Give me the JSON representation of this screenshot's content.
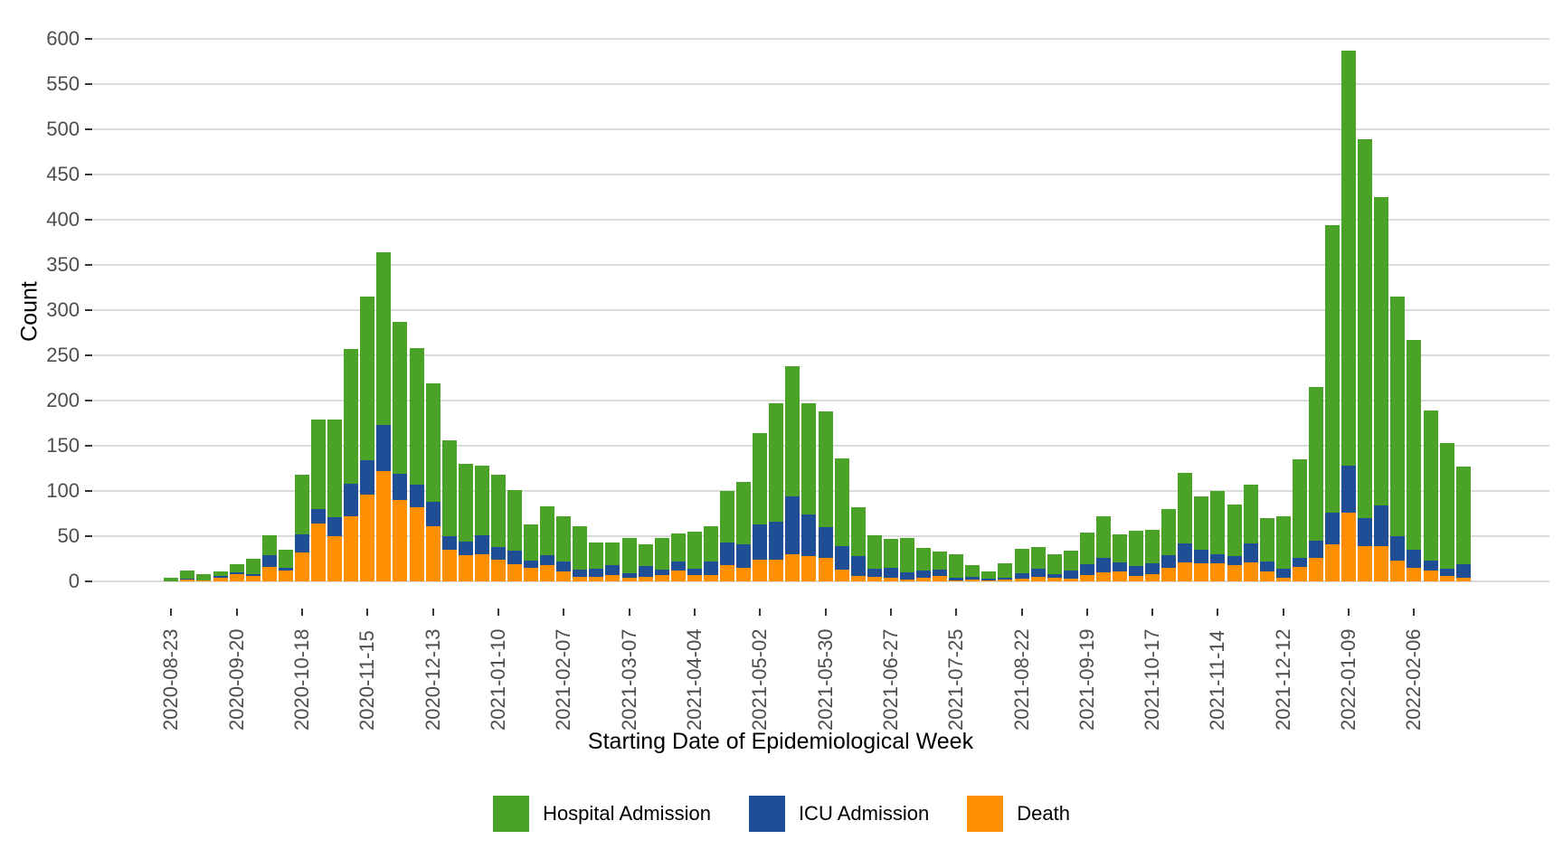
{
  "chart_data": {
    "type": "bar",
    "stacked": true,
    "title": "",
    "xlabel": "Starting Date of Epidemiological Week",
    "ylabel": "Count",
    "ylim": [
      0,
      600
    ],
    "y_ticks": [
      0,
      50,
      100,
      150,
      200,
      250,
      300,
      350,
      400,
      450,
      500,
      550,
      600
    ],
    "grid": "horizontal",
    "legend_position": "bottom",
    "categories": [
      "2020-08-23",
      "2020-08-30",
      "2020-09-06",
      "2020-09-13",
      "2020-09-20",
      "2020-09-27",
      "2020-10-04",
      "2020-10-11",
      "2020-10-18",
      "2020-10-25",
      "2020-11-01",
      "2020-11-08",
      "2020-11-15",
      "2020-11-22",
      "2020-11-29",
      "2020-12-06",
      "2020-12-13",
      "2020-12-20",
      "2020-12-27",
      "2021-01-03",
      "2021-01-10",
      "2021-01-17",
      "2021-01-24",
      "2021-01-31",
      "2021-02-07",
      "2021-02-14",
      "2021-02-21",
      "2021-02-28",
      "2021-03-07",
      "2021-03-14",
      "2021-03-21",
      "2021-03-28",
      "2021-04-04",
      "2021-04-11",
      "2021-04-18",
      "2021-04-25",
      "2021-05-02",
      "2021-05-09",
      "2021-05-16",
      "2021-05-23",
      "2021-05-30",
      "2021-06-06",
      "2021-06-13",
      "2021-06-20",
      "2021-06-27",
      "2021-07-04",
      "2021-07-11",
      "2021-07-18",
      "2021-07-25",
      "2021-08-01",
      "2021-08-08",
      "2021-08-15",
      "2021-08-22",
      "2021-08-29",
      "2021-09-05",
      "2021-09-12",
      "2021-09-19",
      "2021-09-26",
      "2021-10-03",
      "2021-10-10",
      "2021-10-17",
      "2021-10-24",
      "2021-10-31",
      "2021-11-07",
      "2021-11-14",
      "2021-11-21",
      "2021-11-28",
      "2021-12-05",
      "2021-12-12",
      "2021-12-19",
      "2021-12-26",
      "2022-01-02",
      "2022-01-09",
      "2022-01-16",
      "2022-01-23",
      "2022-01-30",
      "2022-02-06",
      "2022-02-13",
      "2022-02-20",
      "2022-02-27"
    ],
    "x_tick_label_every": 4,
    "x_tick_labels_shown": [
      "2020-08-23",
      "2020-09-20",
      "2020-10-18",
      "2020-11-15",
      "2020-12-13",
      "2021-01-10",
      "2021-02-07",
      "2021-03-07",
      "2021-04-04",
      "2021-05-02",
      "2021-05-30",
      "2021-06-27",
      "2021-07-25",
      "2021-08-22",
      "2021-09-19",
      "2021-10-17",
      "2021-11-14",
      "2021-12-12",
      "2022-01-09",
      "2022-02-06"
    ],
    "series": [
      {
        "name": "Death",
        "color": "#FF8F00",
        "values": [
          0,
          2,
          1,
          4,
          8,
          6,
          16,
          12,
          32,
          64,
          50,
          72,
          96,
          122,
          90,
          82,
          61,
          35,
          29,
          30,
          24,
          19,
          15,
          18,
          11,
          5,
          5,
          7,
          4,
          5,
          7,
          12,
          7,
          7,
          18,
          15,
          24,
          24,
          30,
          28,
          26,
          13,
          6,
          5,
          4,
          2,
          4,
          6,
          1,
          2,
          1,
          2,
          3,
          5,
          4,
          3,
          7,
          10,
          11,
          6,
          8,
          15,
          21,
          20,
          20,
          18,
          21,
          11,
          4,
          16,
          26,
          41,
          76,
          39,
          39,
          23,
          15,
          12,
          6,
          4
        ]
      },
      {
        "name": "ICU Admission",
        "color": "#1F4E96",
        "values": [
          0,
          1,
          0,
          2,
          2,
          2,
          13,
          3,
          20,
          16,
          21,
          36,
          38,
          51,
          29,
          25,
          27,
          15,
          15,
          21,
          14,
          15,
          8,
          11,
          11,
          8,
          9,
          11,
          5,
          12,
          6,
          10,
          7,
          15,
          25,
          26,
          39,
          42,
          64,
          46,
          34,
          26,
          22,
          9,
          11,
          8,
          8,
          7,
          3,
          3,
          2,
          2,
          6,
          9,
          4,
          9,
          12,
          16,
          10,
          11,
          12,
          14,
          21,
          15,
          10,
          10,
          21,
          11,
          10,
          10,
          19,
          35,
          52,
          31,
          45,
          27,
          20,
          11,
          8,
          15
        ]
      },
      {
        "name": "Hospital Admission",
        "color": "#4AA327",
        "values": [
          4,
          9,
          7,
          5,
          9,
          17,
          22,
          20,
          66,
          99,
          108,
          149,
          181,
          191,
          168,
          151,
          131,
          106,
          86,
          77,
          80,
          67,
          40,
          54,
          50,
          48,
          29,
          25,
          39,
          24,
          35,
          31,
          41,
          39,
          57,
          69,
          101,
          131,
          144,
          123,
          128,
          97,
          54,
          37,
          32,
          38,
          25,
          20,
          26,
          13,
          8,
          16,
          27,
          24,
          22,
          22,
          35,
          46,
          31,
          39,
          37,
          51,
          78,
          59,
          70,
          57,
          65,
          48,
          58,
          109,
          170,
          318,
          459,
          419,
          341,
          265,
          232,
          166,
          139,
          108
        ]
      }
    ]
  },
  "axes": {
    "x_title": "Starting Date of Epidemiological Week",
    "y_title": "Count"
  },
  "legend": {
    "items": [
      {
        "label": "Hospital Admission",
        "color": "#4AA327"
      },
      {
        "label": "ICU Admission",
        "color": "#1F4E96"
      },
      {
        "label": "Death",
        "color": "#FF8F00"
      }
    ]
  },
  "colors": {
    "background": "#ffffff",
    "gridline": "#dbdbdb",
    "tick_text": "#4d4d4d",
    "axis_title_text": "#000000",
    "tick_mark": "#333333"
  }
}
